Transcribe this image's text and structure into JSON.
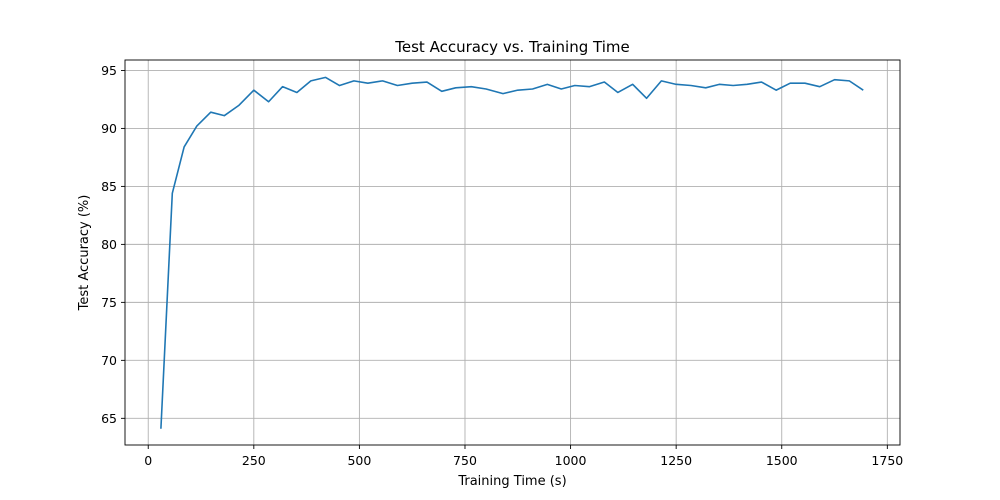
{
  "chart_data": {
    "type": "line",
    "title": "Test Accuracy vs. Training Time",
    "xlabel": "Training Time (s)",
    "ylabel": "Test Accuracy (%)",
    "xlim": [
      -55,
      1780
    ],
    "ylim": [
      62.7,
      95.9
    ],
    "xticks": [
      0,
      250,
      500,
      750,
      1000,
      1250,
      1500,
      1750
    ],
    "yticks": [
      65,
      70,
      75,
      80,
      85,
      90,
      95
    ],
    "grid": true,
    "line_color": "#1f77b4",
    "series": [
      {
        "x": [
          30,
          57,
          85,
          115,
          148,
          180,
          215,
          250,
          285,
          318,
          352,
          385,
          420,
          453,
          487,
          520,
          555,
          590,
          625,
          660,
          695,
          728,
          765,
          800,
          840,
          875,
          910,
          945,
          978,
          1010,
          1045,
          1080,
          1112,
          1147,
          1180,
          1215,
          1250,
          1285,
          1320,
          1352,
          1385,
          1418,
          1452,
          1487,
          1520,
          1555,
          1590,
          1625,
          1660,
          1693
        ],
        "values": [
          64.1,
          84.4,
          88.4,
          90.2,
          91.4,
          91.1,
          92.0,
          93.3,
          92.3,
          93.6,
          93.1,
          94.1,
          94.4,
          93.7,
          94.1,
          93.9,
          94.1,
          93.7,
          93.9,
          94.0,
          93.2,
          93.5,
          93.6,
          93.4,
          93.0,
          93.3,
          93.4,
          93.8,
          93.4,
          93.7,
          93.6,
          94.0,
          93.1,
          93.8,
          92.6,
          94.1,
          93.8,
          93.7,
          93.5,
          93.8,
          93.7,
          93.8,
          94.0,
          93.3,
          93.9,
          93.9,
          93.6,
          94.2,
          94.1,
          93.3
        ]
      }
    ]
  }
}
